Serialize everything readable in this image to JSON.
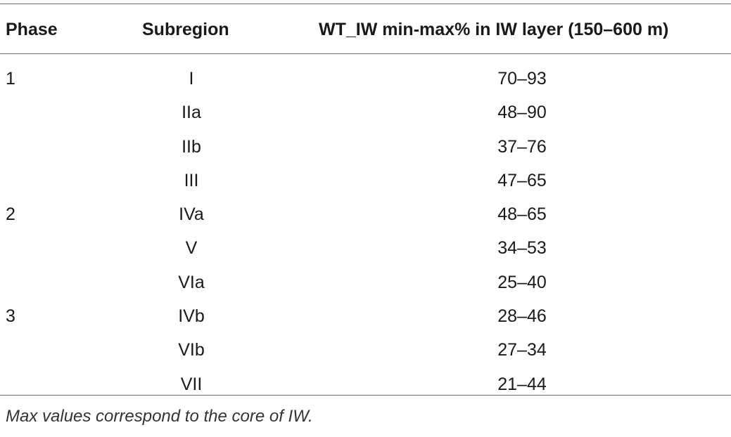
{
  "table": {
    "headers": {
      "phase": "Phase",
      "subregion": "Subregion",
      "value": "WT_IW min-max% in IW layer (150–600 m)"
    },
    "rows": [
      {
        "phase": "1",
        "subregion": "I",
        "value": "70–93"
      },
      {
        "phase": "",
        "subregion": "IIa",
        "value": "48–90"
      },
      {
        "phase": "",
        "subregion": "IIb",
        "value": "37–76"
      },
      {
        "phase": "",
        "subregion": "III",
        "value": "47–65"
      },
      {
        "phase": "2",
        "subregion": "IVa",
        "value": "48–65"
      },
      {
        "phase": "",
        "subregion": "V",
        "value": "34–53"
      },
      {
        "phase": "",
        "subregion": "VIa",
        "value": "25–40"
      },
      {
        "phase": "3",
        "subregion": "IVb",
        "value": "28–46"
      },
      {
        "phase": "",
        "subregion": "VIb",
        "value": "27–34"
      },
      {
        "phase": "",
        "subregion": "VII",
        "value": "21–44"
      }
    ],
    "footnote": "Max values correspond to the core of IW."
  }
}
